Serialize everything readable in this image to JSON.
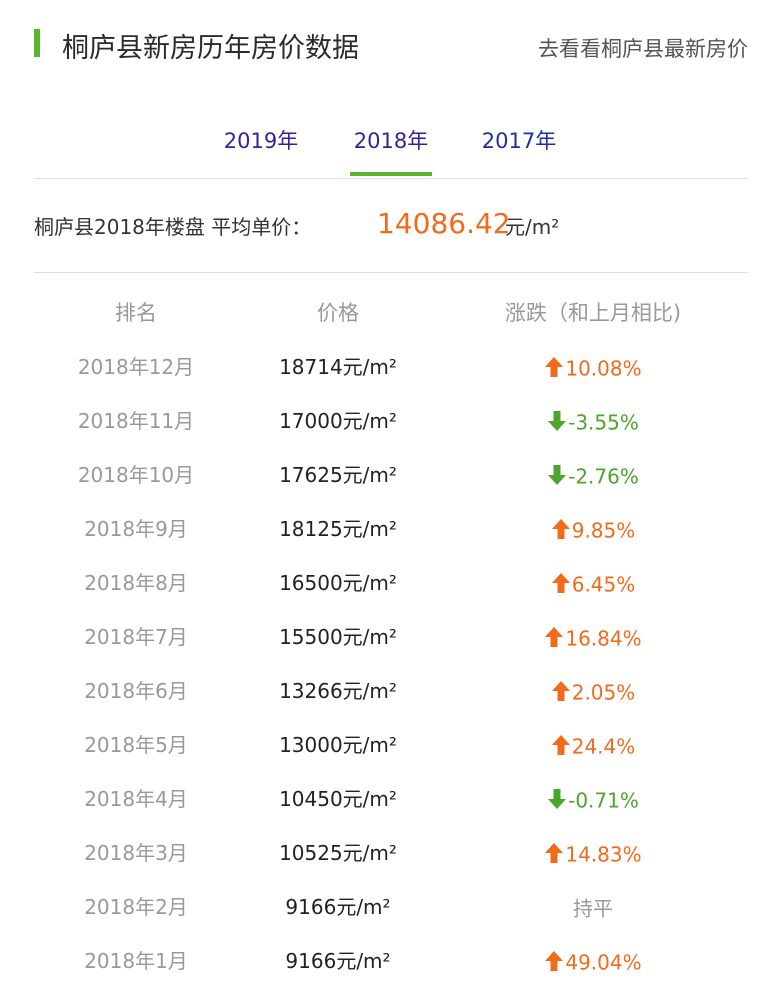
{
  "header": {
    "title": "桐庐县新房历年房价数据",
    "link_text": "去看看桐庐县最新房价"
  },
  "tabs": [
    {
      "label": "2019年",
      "active": false
    },
    {
      "label": "2018年",
      "active": true
    },
    {
      "label": "2017年",
      "active": false
    }
  ],
  "summary": {
    "label": "桐庐县2018年楼盘  平均单价：",
    "value": "14086.42",
    "unit": "元/m²"
  },
  "table": {
    "headers": [
      "排名",
      "价格",
      "涨跌（和上月相比)"
    ],
    "rows": [
      {
        "month": "2018年12月",
        "price": "18714元/m²",
        "change": "10.08%",
        "direction": "up"
      },
      {
        "month": "2018年11月",
        "price": "17000元/m²",
        "change": "-3.55%",
        "direction": "down"
      },
      {
        "month": "2018年10月",
        "price": "17625元/m²",
        "change": "-2.76%",
        "direction": "down"
      },
      {
        "month": "2018年9月",
        "price": "18125元/m²",
        "change": "9.85%",
        "direction": "up"
      },
      {
        "month": "2018年8月",
        "price": "16500元/m²",
        "change": "6.45%",
        "direction": "up"
      },
      {
        "month": "2018年7月",
        "price": "15500元/m²",
        "change": "16.84%",
        "direction": "up"
      },
      {
        "month": "2018年6月",
        "price": "13266元/m²",
        "change": "2.05%",
        "direction": "up"
      },
      {
        "month": "2018年5月",
        "price": "13000元/m²",
        "change": "24.4%",
        "direction": "up"
      },
      {
        "month": "2018年4月",
        "price": "10450元/m²",
        "change": "-0.71%",
        "direction": "down"
      },
      {
        "month": "2018年3月",
        "price": "10525元/m²",
        "change": "14.83%",
        "direction": "up"
      },
      {
        "month": "2018年2月",
        "price": "9166元/m²",
        "change": "持平",
        "direction": "flat"
      },
      {
        "month": "2018年1月",
        "price": "9166元/m²",
        "change": "49.04%",
        "direction": "up"
      }
    ]
  },
  "colors": {
    "accent_green": "#5cb531",
    "up_orange": "#f26a1b",
    "down_green": "#4ca52e",
    "muted_gray": "#999999"
  }
}
